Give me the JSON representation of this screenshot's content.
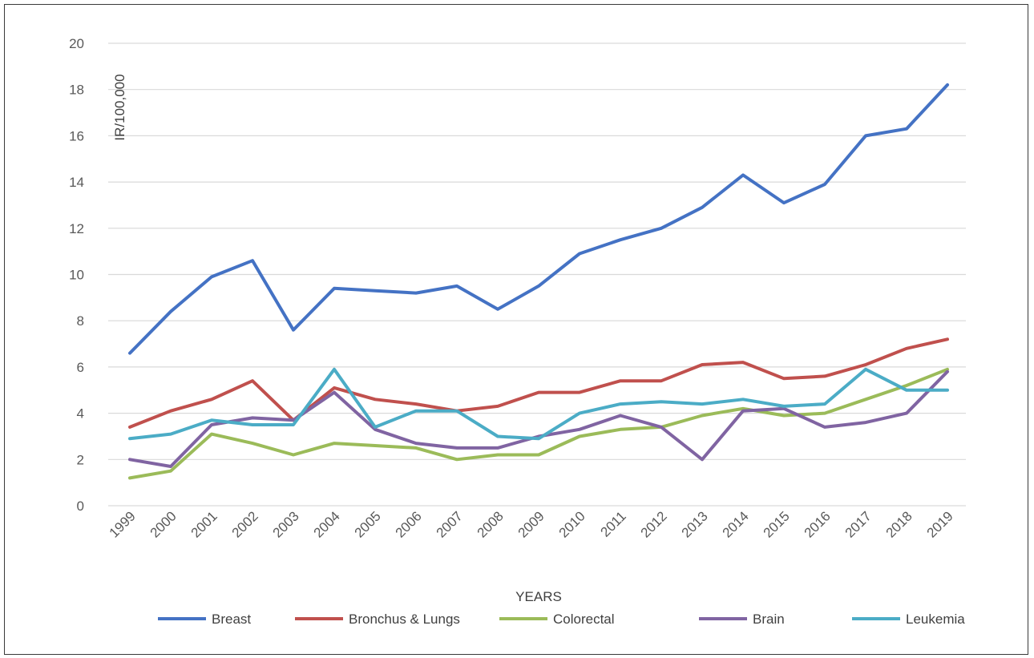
{
  "chart_data": {
    "type": "line",
    "title": "",
    "xlabel": "YEARS",
    "ylabel": "IR/100,000",
    "ylim": [
      0,
      20
    ],
    "yticks": [
      0,
      2,
      4,
      6,
      8,
      10,
      12,
      14,
      16,
      18,
      20
    ],
    "grid": true,
    "legend_position": "bottom",
    "categories": [
      "1999",
      "2000",
      "2001",
      "2002",
      "2003",
      "2004",
      "2005",
      "2006",
      "2007",
      "2008",
      "2009",
      "2010",
      "2011",
      "2012",
      "2013",
      "2014",
      "2015",
      "2016",
      "2017",
      "2018",
      "2019"
    ],
    "series": [
      {
        "name": "Breast",
        "color": "#4472c4",
        "values": [
          6.6,
          8.4,
          9.9,
          10.6,
          7.6,
          9.4,
          9.3,
          9.2,
          9.5,
          8.5,
          9.5,
          10.9,
          11.5,
          12.0,
          12.9,
          14.3,
          13.1,
          13.9,
          16.0,
          16.3,
          18.2
        ]
      },
      {
        "name": "Bronchus & Lungs",
        "color": "#c0504d",
        "values": [
          3.4,
          4.1,
          4.6,
          5.4,
          3.7,
          5.1,
          4.6,
          4.4,
          4.1,
          4.3,
          4.9,
          4.9,
          5.4,
          5.4,
          6.1,
          6.2,
          5.5,
          5.6,
          6.1,
          6.8,
          7.2
        ]
      },
      {
        "name": "Colorectal",
        "color": "#9bbb59",
        "values": [
          1.2,
          1.5,
          3.1,
          2.7,
          2.2,
          2.7,
          2.6,
          2.5,
          2.0,
          2.2,
          2.2,
          3.0,
          3.3,
          3.4,
          3.9,
          4.2,
          3.9,
          4.0,
          4.6,
          5.2,
          5.9
        ]
      },
      {
        "name": "Brain",
        "color": "#8064a2",
        "values": [
          2.0,
          1.7,
          3.5,
          3.8,
          3.7,
          4.9,
          3.3,
          2.7,
          2.5,
          2.5,
          3.0,
          3.3,
          3.9,
          3.4,
          2.0,
          4.1,
          4.2,
          3.4,
          3.6,
          4.0,
          5.8
        ]
      },
      {
        "name": "Leukemia",
        "color": "#4bacc6",
        "values": [
          2.9,
          3.1,
          3.7,
          3.5,
          3.5,
          5.9,
          3.4,
          4.1,
          4.1,
          3.0,
          2.9,
          4.0,
          4.4,
          4.5,
          4.4,
          4.6,
          4.3,
          4.4,
          5.9,
          5.0,
          5.0
        ]
      }
    ]
  }
}
